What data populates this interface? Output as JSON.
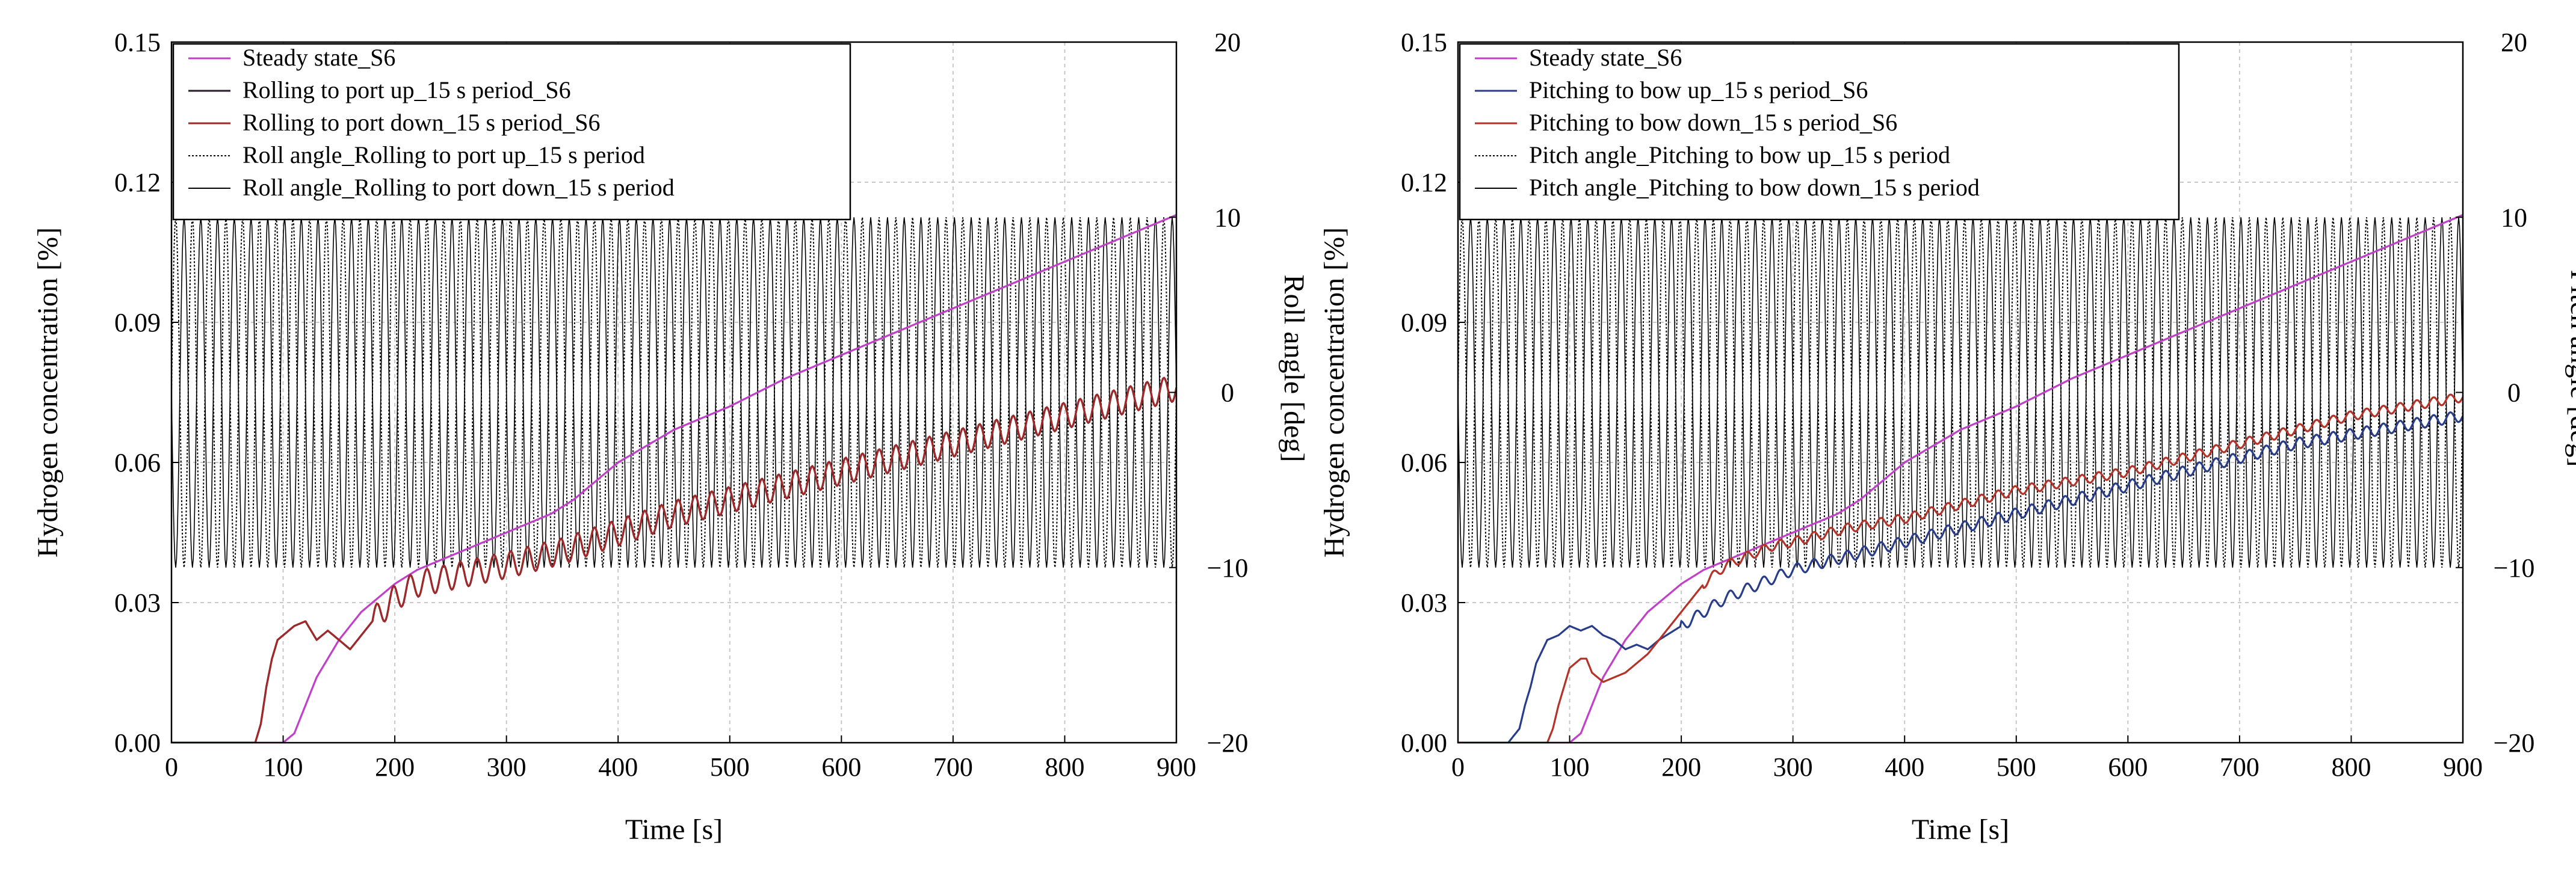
{
  "chart_data": [
    {
      "type": "line",
      "xlabel": "Time [s]",
      "ylabel": "Hydrogen concentration [%]",
      "y2label": "Roll angle [deg]",
      "xlim": [
        0,
        900
      ],
      "ylim": [
        0,
        0.15
      ],
      "y2lim": [
        -20,
        20
      ],
      "grid": true,
      "legend_position": "top-left",
      "x_ticks": [
        "0",
        "100",
        "200",
        "300",
        "400",
        "500",
        "600",
        "700",
        "800",
        "900"
      ],
      "y_ticks": [
        "0.00",
        "0.03",
        "0.06",
        "0.09",
        "0.12",
        "0.15"
      ],
      "y2_ticks": [
        "−20",
        "−10",
        "0",
        "10",
        "20"
      ],
      "series": [
        {
          "name": "Steady state_S6",
          "color": "#C040C8",
          "style": "solid",
          "axis": "left",
          "x": [
            0,
            100,
            110,
            120,
            130,
            140,
            150,
            160,
            170,
            180,
            190,
            200,
            220,
            240,
            260,
            280,
            300,
            320,
            340,
            360,
            380,
            400,
            450,
            500,
            550,
            600,
            650,
            700,
            750,
            800,
            850,
            900
          ],
          "values": [
            0,
            0,
            0.002,
            0.008,
            0.014,
            0.018,
            0.022,
            0.025,
            0.028,
            0.03,
            0.032,
            0.034,
            0.037,
            0.039,
            0.041,
            0.043,
            0.045,
            0.047,
            0.049,
            0.052,
            0.056,
            0.06,
            0.067,
            0.072,
            0.078,
            0.083,
            0.088,
            0.093,
            0.098,
            0.103,
            0.108,
            0.113
          ]
        },
        {
          "name": "Rolling to port up_15 s period_S6",
          "color": "#2a1a30",
          "style": "solid",
          "axis": "left",
          "oscillation": {
            "period": 15,
            "amplitude": 0.0028,
            "start": 180
          },
          "x": [
            0,
            75,
            80,
            85,
            90,
            95,
            100,
            110,
            120,
            130,
            140,
            150,
            160,
            170,
            180,
            200,
            220,
            240,
            260,
            280,
            300,
            350,
            400,
            450,
            500,
            550,
            600,
            650,
            700,
            750,
            800,
            850,
            900
          ],
          "values": [
            0,
            0,
            0.004,
            0.012,
            0.018,
            0.022,
            0.023,
            0.025,
            0.026,
            0.022,
            0.024,
            0.022,
            0.02,
            0.023,
            0.026,
            0.031,
            0.034,
            0.035,
            0.036,
            0.037,
            0.038,
            0.041,
            0.045,
            0.049,
            0.052,
            0.055,
            0.058,
            0.061,
            0.064,
            0.067,
            0.07,
            0.073,
            0.076
          ]
        },
        {
          "name": "Rolling to port down_15 s period_S6",
          "color": "#A02828",
          "style": "solid",
          "axis": "left",
          "oscillation": {
            "period": 15,
            "amplitude": 0.0028,
            "start": 180
          },
          "x": [
            0,
            75,
            80,
            85,
            90,
            95,
            100,
            110,
            120,
            130,
            140,
            150,
            160,
            170,
            180,
            200,
            220,
            240,
            260,
            280,
            300,
            350,
            400,
            450,
            500,
            550,
            600,
            650,
            700,
            750,
            800,
            850,
            900
          ],
          "values": [
            0,
            0,
            0.004,
            0.012,
            0.018,
            0.022,
            0.023,
            0.025,
            0.026,
            0.022,
            0.024,
            0.022,
            0.02,
            0.023,
            0.026,
            0.031,
            0.034,
            0.035,
            0.036,
            0.037,
            0.038,
            0.041,
            0.045,
            0.049,
            0.052,
            0.055,
            0.058,
            0.061,
            0.064,
            0.067,
            0.07,
            0.073,
            0.076
          ]
        },
        {
          "name": "Roll angle_Rolling to port up_15 s period",
          "color": "#000000",
          "style": "dotted",
          "axis": "right",
          "function": {
            "kind": "sine",
            "amplitude": 10,
            "period": 15,
            "phase": 0
          }
        },
        {
          "name": "Roll angle_Rolling to port down_15 s period",
          "color": "#000000",
          "style": "solid",
          "axis": "right",
          "function": {
            "kind": "sine",
            "amplitude": 10,
            "period": 15,
            "phase": 0.5
          }
        }
      ]
    },
    {
      "type": "line",
      "xlabel": "Time [s]",
      "ylabel": "Hydrogen concentration [%]",
      "y2label": "Pitch angle [deg]",
      "xlim": [
        0,
        900
      ],
      "ylim": [
        0,
        0.15
      ],
      "y2lim": [
        -20,
        20
      ],
      "grid": true,
      "legend_position": "top-left",
      "x_ticks": [
        "0",
        "100",
        "200",
        "300",
        "400",
        "500",
        "600",
        "700",
        "800",
        "900"
      ],
      "y_ticks": [
        "0.00",
        "0.03",
        "0.06",
        "0.09",
        "0.12",
        "0.15"
      ],
      "y2_ticks": [
        "−20",
        "−10",
        "0",
        "10",
        "20"
      ],
      "series": [
        {
          "name": "Steady state_S6",
          "color": "#C040C8",
          "style": "solid",
          "axis": "left",
          "x": [
            0,
            100,
            110,
            120,
            130,
            140,
            150,
            160,
            170,
            180,
            190,
            200,
            220,
            240,
            260,
            280,
            300,
            320,
            340,
            360,
            380,
            400,
            450,
            500,
            550,
            600,
            650,
            700,
            750,
            800,
            850,
            900
          ],
          "values": [
            0,
            0,
            0.002,
            0.008,
            0.014,
            0.018,
            0.022,
            0.025,
            0.028,
            0.03,
            0.032,
            0.034,
            0.037,
            0.039,
            0.041,
            0.043,
            0.045,
            0.047,
            0.049,
            0.052,
            0.056,
            0.06,
            0.067,
            0.072,
            0.078,
            0.083,
            0.088,
            0.093,
            0.098,
            0.103,
            0.108,
            0.113
          ]
        },
        {
          "name": "Pitching to bow up_15 s period_S6",
          "color": "#283C8C",
          "style": "solid",
          "axis": "left",
          "oscillation": {
            "period": 15,
            "amplitude": 0.0012,
            "start": 200
          },
          "x": [
            0,
            45,
            55,
            60,
            65,
            70,
            80,
            90,
            100,
            110,
            120,
            130,
            140,
            150,
            160,
            170,
            180,
            200,
            220,
            240,
            260,
            280,
            300,
            350,
            400,
            450,
            500,
            550,
            600,
            650,
            700,
            750,
            800,
            850,
            900
          ],
          "values": [
            0,
            0,
            0.003,
            0.008,
            0.012,
            0.017,
            0.022,
            0.023,
            0.025,
            0.024,
            0.025,
            0.023,
            0.022,
            0.02,
            0.021,
            0.02,
            0.022,
            0.025,
            0.028,
            0.031,
            0.033,
            0.035,
            0.037,
            0.04,
            0.043,
            0.046,
            0.049,
            0.052,
            0.055,
            0.058,
            0.061,
            0.064,
            0.066,
            0.068,
            0.07
          ]
        },
        {
          "name": "Pitching to bow down_15 s period_S6",
          "color": "#B43228",
          "style": "solid",
          "axis": "left",
          "oscillation": {
            "period": 15,
            "amplitude": 0.001,
            "start": 220
          },
          "x": [
            0,
            80,
            85,
            90,
            95,
            100,
            110,
            115,
            120,
            130,
            140,
            150,
            160,
            170,
            180,
            200,
            220,
            240,
            260,
            280,
            300,
            350,
            400,
            450,
            500,
            550,
            600,
            650,
            700,
            750,
            800,
            850,
            900
          ],
          "values": [
            0,
            0,
            0.003,
            0.008,
            0.012,
            0.016,
            0.018,
            0.018,
            0.015,
            0.013,
            0.014,
            0.015,
            0.017,
            0.019,
            0.022,
            0.028,
            0.034,
            0.038,
            0.04,
            0.042,
            0.043,
            0.046,
            0.048,
            0.051,
            0.054,
            0.056,
            0.058,
            0.061,
            0.064,
            0.067,
            0.07,
            0.072,
            0.074
          ]
        },
        {
          "name": "Pitch angle_Pitching to bow up_15 s period",
          "color": "#000000",
          "style": "dotted",
          "axis": "right",
          "function": {
            "kind": "sine",
            "amplitude": 10,
            "period": 15,
            "phase": 0
          }
        },
        {
          "name": "Pitch angle_Pitching to bow down_15 s period",
          "color": "#000000",
          "style": "solid",
          "axis": "right",
          "function": {
            "kind": "sine",
            "amplitude": 10,
            "period": 15,
            "phase": 0.5
          }
        }
      ]
    }
  ]
}
